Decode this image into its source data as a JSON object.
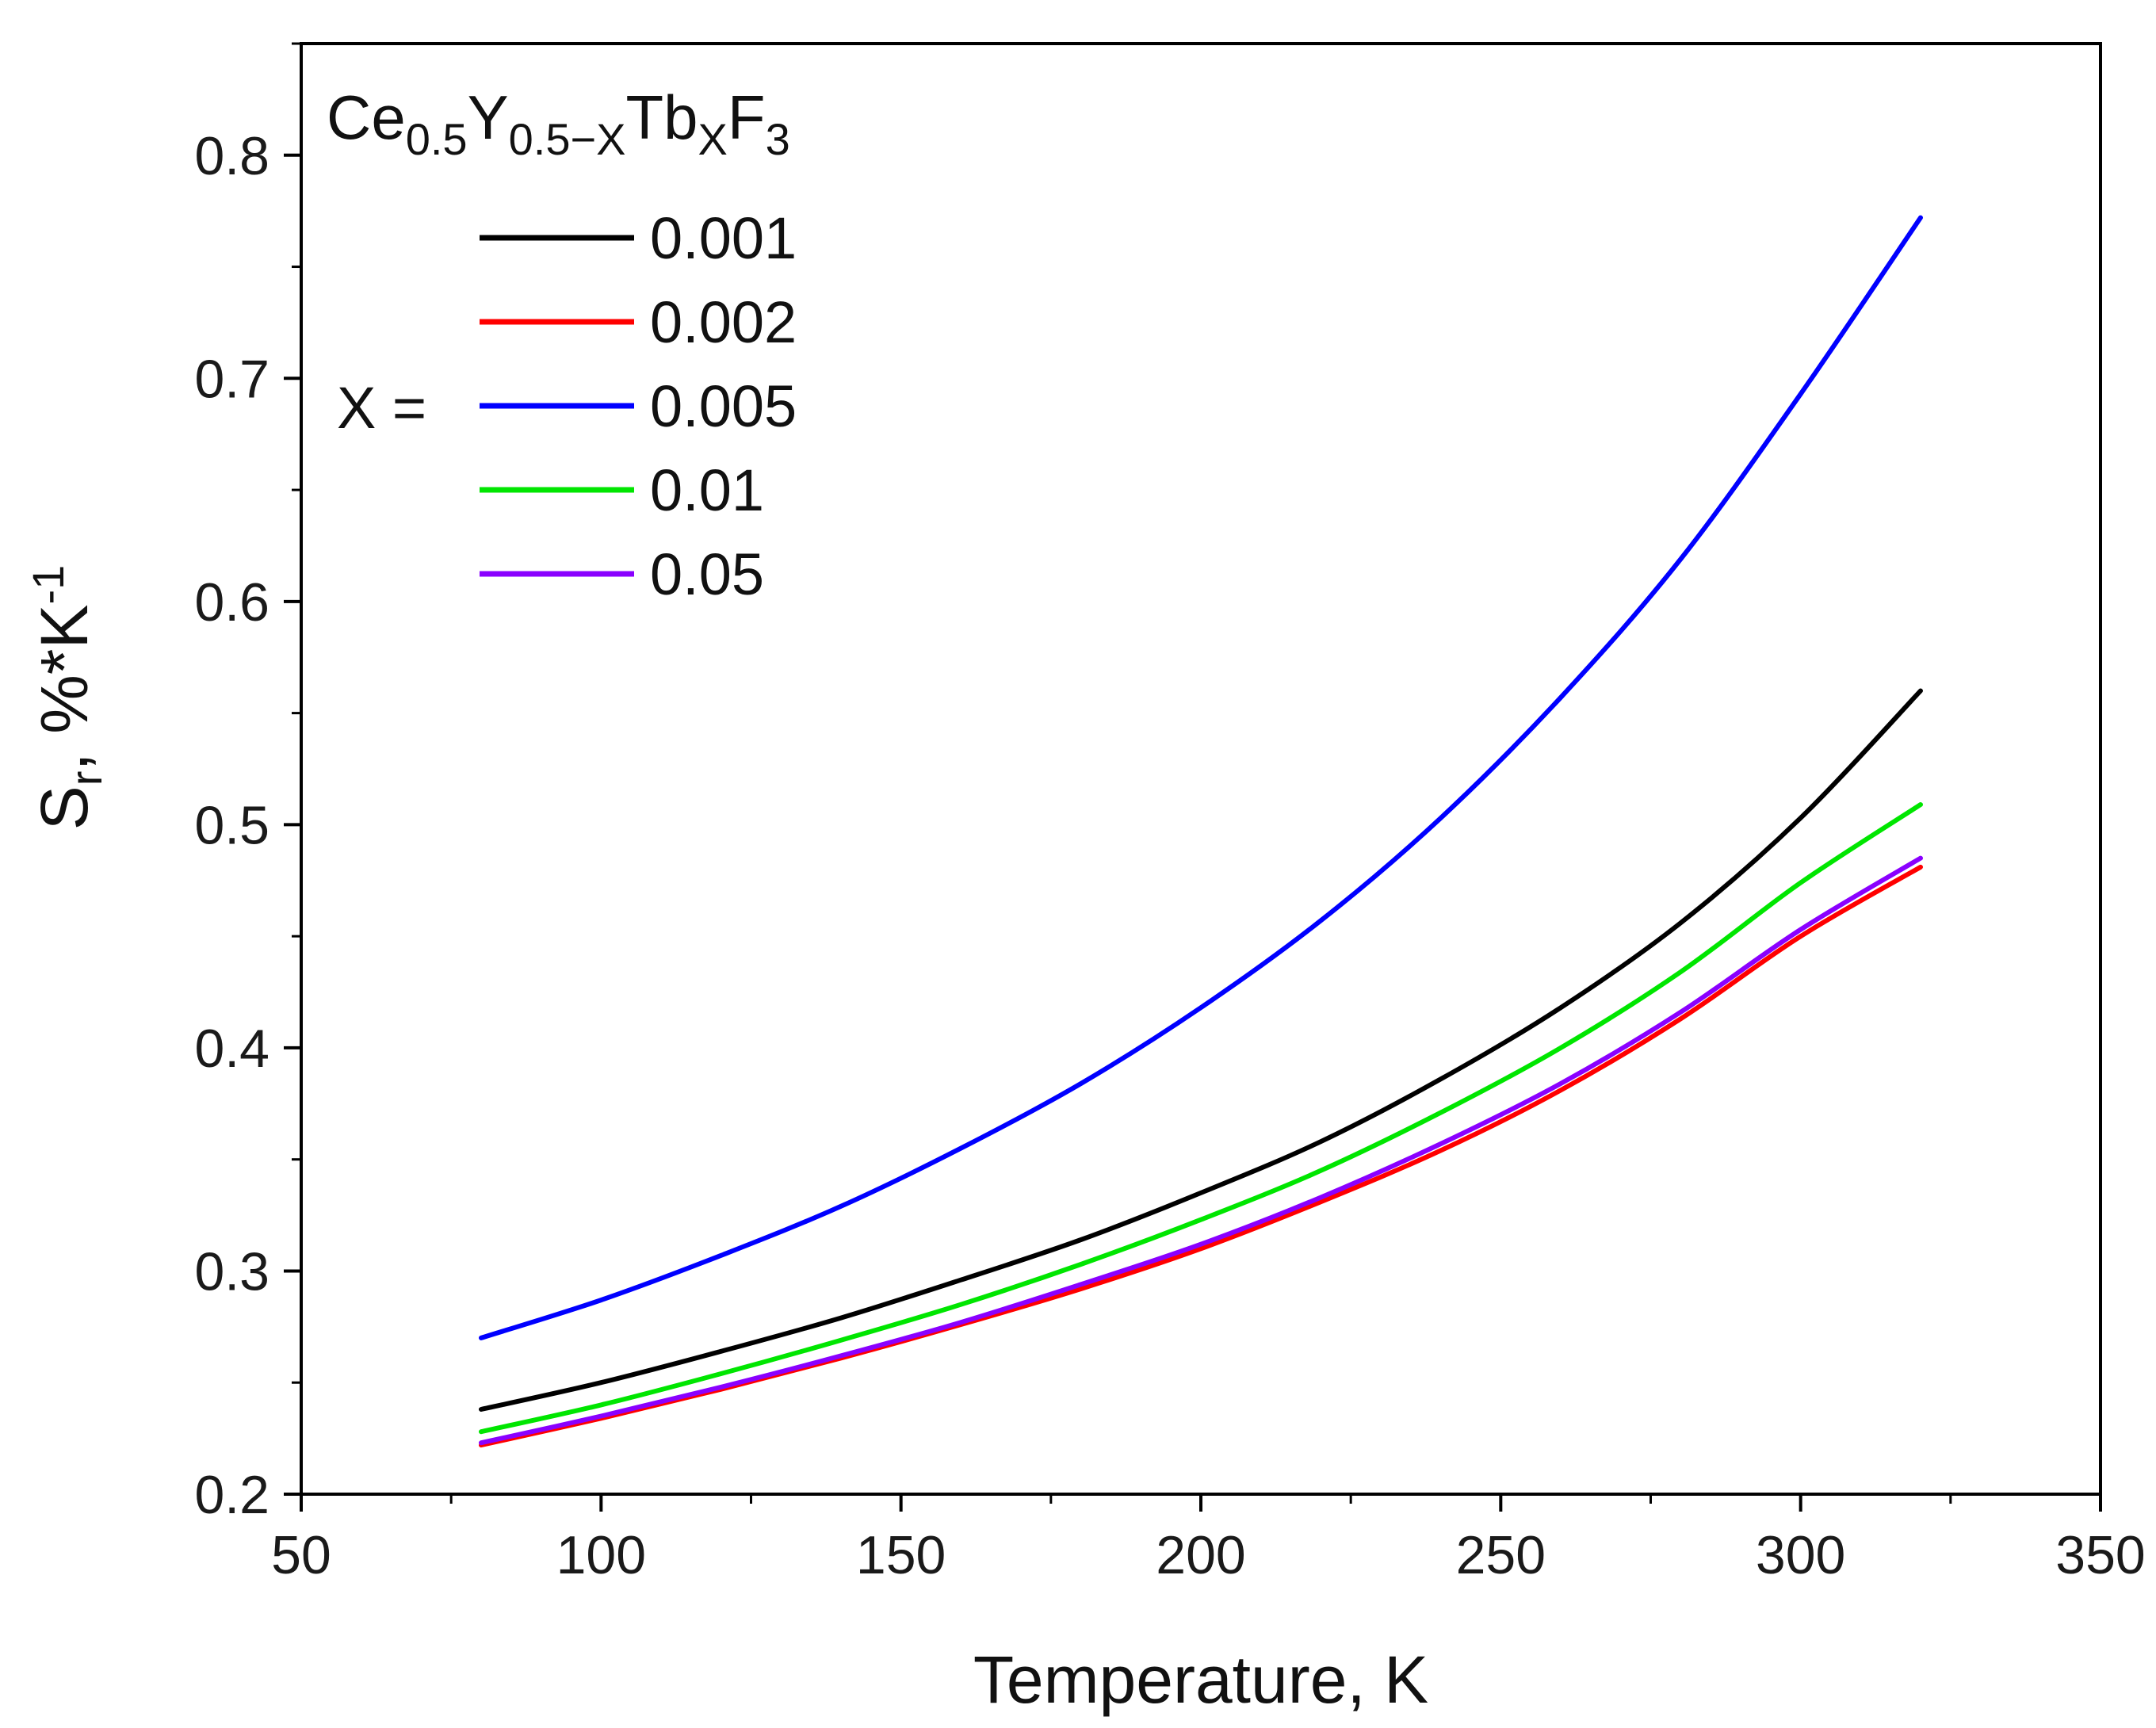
{
  "chart_data": {
    "type": "line",
    "title": "",
    "compound": {
      "base_ce": "Ce",
      "sub_ce": "0.5",
      "base_y": "Y",
      "sub_y": "0.5−X",
      "base_tb": "Tb",
      "sub_tb": "X",
      "base_f": "F",
      "sub_f": "3"
    },
    "xlabel": "Temperature, K",
    "ylabel": {
      "s": "S",
      "sub": "r",
      "sep": ",  %*K",
      "sup": "-1"
    },
    "xlim": [
      50,
      350
    ],
    "ylim": [
      0.2,
      0.85
    ],
    "xticks": [
      "50",
      "100",
      "150",
      "200",
      "250",
      "300",
      "350"
    ],
    "yticks": [
      "0.2",
      "0.3",
      "0.4",
      "0.5",
      "0.6",
      "0.7",
      "0.8"
    ],
    "legend_prefix": "X =",
    "legend_position": "top-left",
    "x": [
      80,
      100,
      120,
      140,
      160,
      180,
      200,
      220,
      240,
      260,
      280,
      300,
      320
    ],
    "series": [
      {
        "name": "0.001",
        "color": "#000000",
        "values": [
          0.238,
          0.25,
          0.264,
          0.279,
          0.296,
          0.314,
          0.335,
          0.358,
          0.386,
          0.418,
          0.456,
          0.503,
          0.56
        ]
      },
      {
        "name": "0.002",
        "color": "#ff0000",
        "values": [
          0.222,
          0.234,
          0.247,
          0.261,
          0.276,
          0.292,
          0.31,
          0.331,
          0.354,
          0.381,
          0.413,
          0.45,
          0.481
        ]
      },
      {
        "name": "0.005",
        "color": "#0000ff",
        "values": [
          0.27,
          0.287,
          0.307,
          0.329,
          0.355,
          0.384,
          0.418,
          0.457,
          0.503,
          0.557,
          0.619,
          0.693,
          0.772
        ]
      },
      {
        "name": "0.01",
        "color": "#00e600",
        "values": [
          0.228,
          0.24,
          0.254,
          0.269,
          0.285,
          0.303,
          0.323,
          0.345,
          0.371,
          0.4,
          0.434,
          0.474,
          0.509
        ]
      },
      {
        "name": "0.05",
        "color": "#8a00ff",
        "values": [
          0.223,
          0.235,
          0.248,
          0.262,
          0.277,
          0.294,
          0.312,
          0.333,
          0.357,
          0.384,
          0.416,
          0.453,
          0.485
        ]
      }
    ]
  }
}
